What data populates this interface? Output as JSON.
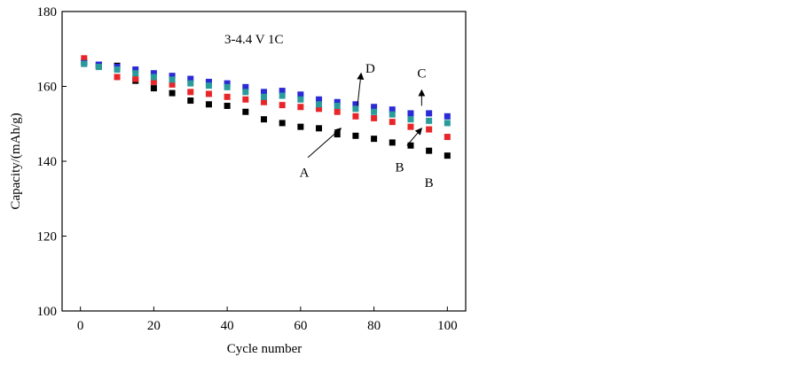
{
  "chart_data": {
    "type": "scatter",
    "title": "",
    "annotation_text": "3-4.4 V  1C",
    "xlabel": "Cycle number",
    "ylabel": "Capacity/(mAh/g)",
    "xlim": [
      -5,
      105
    ],
    "ylim": [
      100,
      180
    ],
    "xticks": [
      0,
      20,
      40,
      60,
      80,
      100
    ],
    "yticks": [
      100,
      120,
      140,
      160,
      180
    ],
    "grid": false,
    "legend": "none",
    "x": [
      1,
      5,
      10,
      15,
      20,
      25,
      30,
      35,
      40,
      45,
      50,
      55,
      60,
      65,
      70,
      75,
      80,
      85,
      90,
      95,
      100
    ],
    "series": [
      {
        "label": "A",
        "color": "#000000",
        "values": [
          166.5,
          165.8,
          165.5,
          161.5,
          159.5,
          158.2,
          156.2,
          155.2,
          154.8,
          153.2,
          151.2,
          150.2,
          149.2,
          148.8,
          147.2,
          146.8,
          146.0,
          145.0,
          144.2,
          142.8,
          141.5
        ]
      },
      {
        "label": "B",
        "color": "#e8262a",
        "values": [
          167.5,
          165.2,
          162.5,
          162.0,
          161.2,
          160.5,
          158.5,
          158.0,
          157.2,
          156.5,
          155.8,
          155.0,
          154.5,
          154.0,
          153.2,
          152.0,
          151.5,
          150.5,
          149.2,
          148.5,
          146.5
        ]
      },
      {
        "label": "C",
        "color": "#2a2ad6",
        "values": [
          166.2,
          165.8,
          165.2,
          164.5,
          163.5,
          162.8,
          162.0,
          161.2,
          160.8,
          159.8,
          158.5,
          158.8,
          157.8,
          156.5,
          155.8,
          155.2,
          154.5,
          153.8,
          152.8,
          152.8,
          152.0
        ]
      },
      {
        "label": "D",
        "color": "#2a9b9b",
        "values": [
          166.0,
          165.2,
          164.5,
          163.5,
          162.5,
          161.8,
          160.8,
          160.2,
          159.8,
          158.5,
          157.2,
          157.5,
          156.5,
          155.2,
          154.8,
          154.0,
          153.2,
          152.5,
          151.2,
          150.8,
          150.2
        ]
      }
    ],
    "arrow_labels": [
      {
        "label": "A",
        "tail": [
          62,
          141
        ],
        "head": [
          71,
          148.8
        ],
        "text_at": [
          61,
          137
        ]
      },
      {
        "label": "B",
        "tail": [
          89,
          144.2
        ],
        "head": [
          93,
          148.8
        ],
        "text_at": [
          87,
          138.5
        ]
      },
      {
        "label": "B",
        "tail": [
          95,
          134.5
        ],
        "head": [
          95,
          134.5
        ],
        "text_at": [
          95,
          134.3
        ]
      },
      {
        "label": "C",
        "tail": [
          93,
          154.8
        ],
        "head": [
          93,
          159
        ],
        "text_at": [
          93,
          163.5
        ]
      },
      {
        "label": "D",
        "tail": [
          75.5,
          154.8
        ],
        "head": [
          76.5,
          163.5
        ],
        "text_at": [
          79,
          164.8
        ]
      }
    ]
  }
}
